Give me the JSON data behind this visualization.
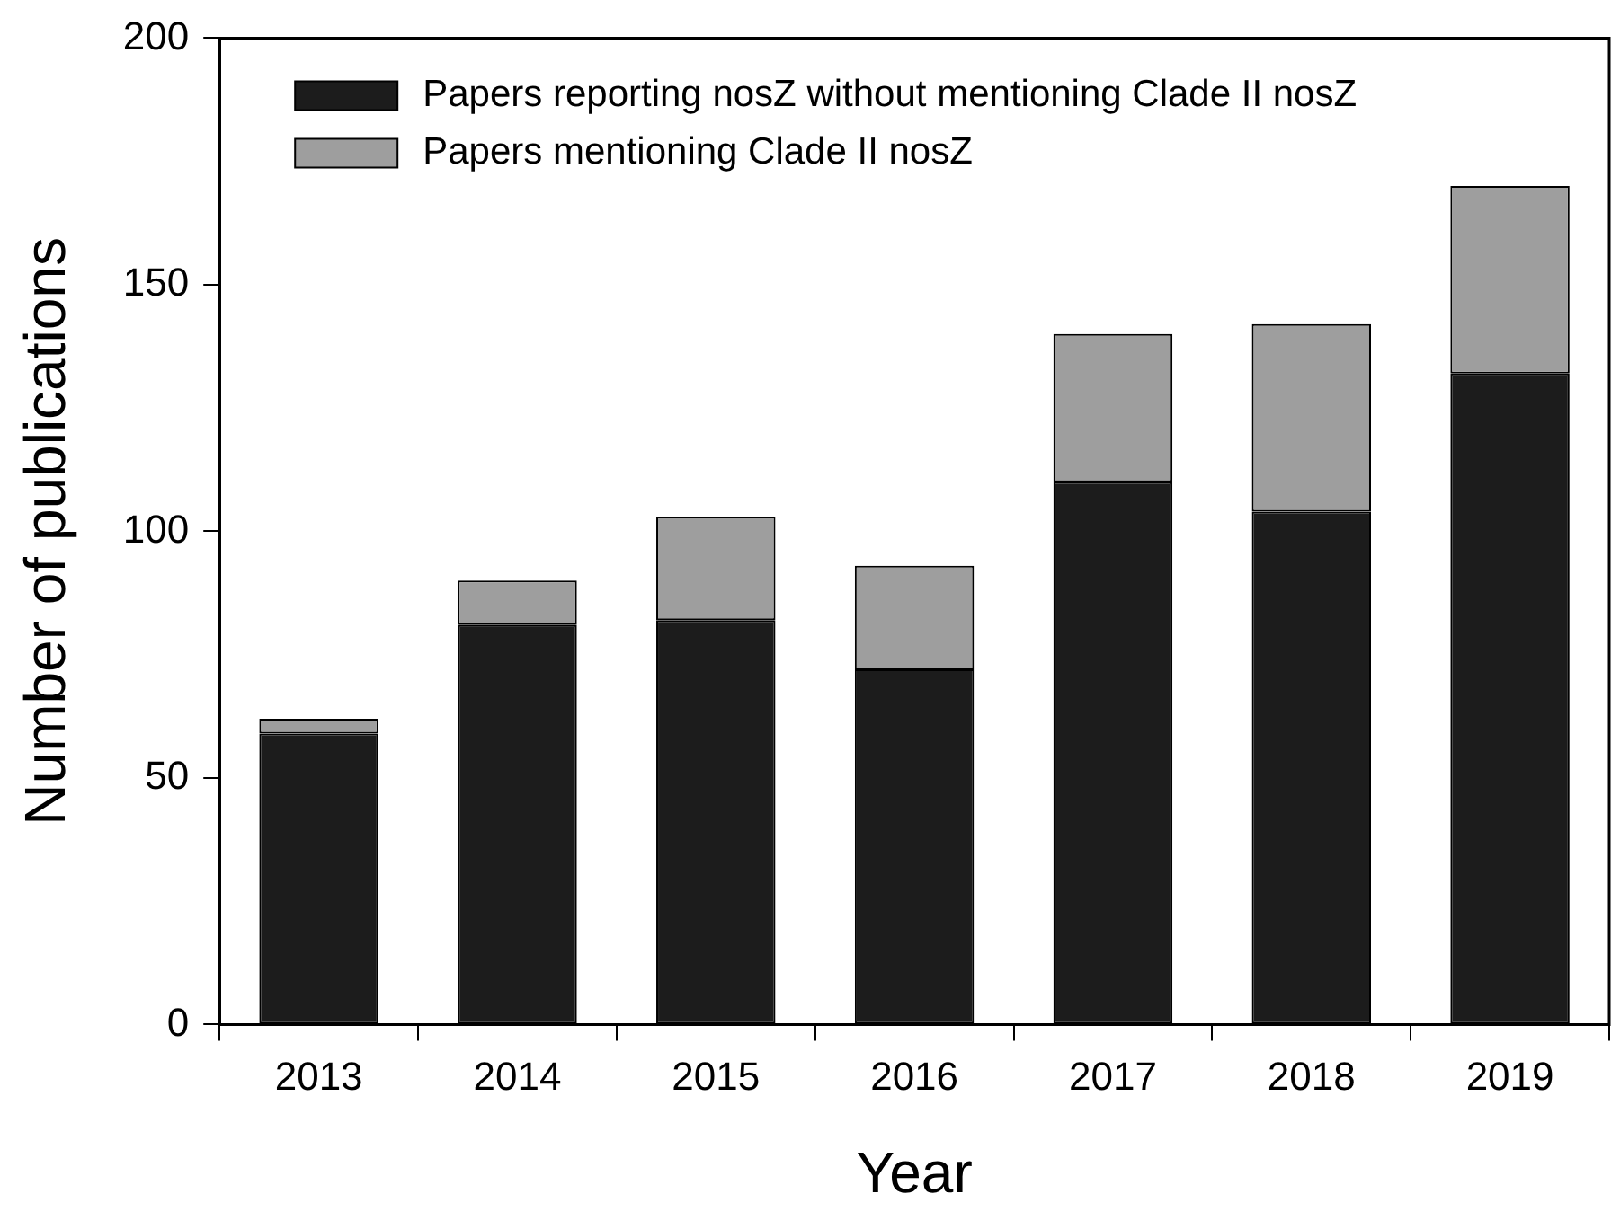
{
  "chart_data": {
    "type": "bar",
    "stacked": true,
    "xlabel": "Year",
    "ylabel": "Number of publications",
    "categories": [
      "2013",
      "2014",
      "2015",
      "2016",
      "2017",
      "2018",
      "2019"
    ],
    "series": [
      {
        "name": "Papers reporting nosZ without mentioning Clade II nosZ",
        "color": "#1c1c1c",
        "values": [
          59,
          81,
          82,
          72,
          110,
          104,
          132
        ]
      },
      {
        "name": "Papers mentioning Clade II nosZ",
        "color": "#9e9e9e",
        "values": [
          3,
          9,
          21,
          21,
          30,
          38,
          38
        ]
      }
    ],
    "ylim": [
      0,
      200
    ],
    "yticks": [
      0,
      50,
      100,
      150,
      200
    ],
    "grid": false,
    "legend": "top left"
  }
}
